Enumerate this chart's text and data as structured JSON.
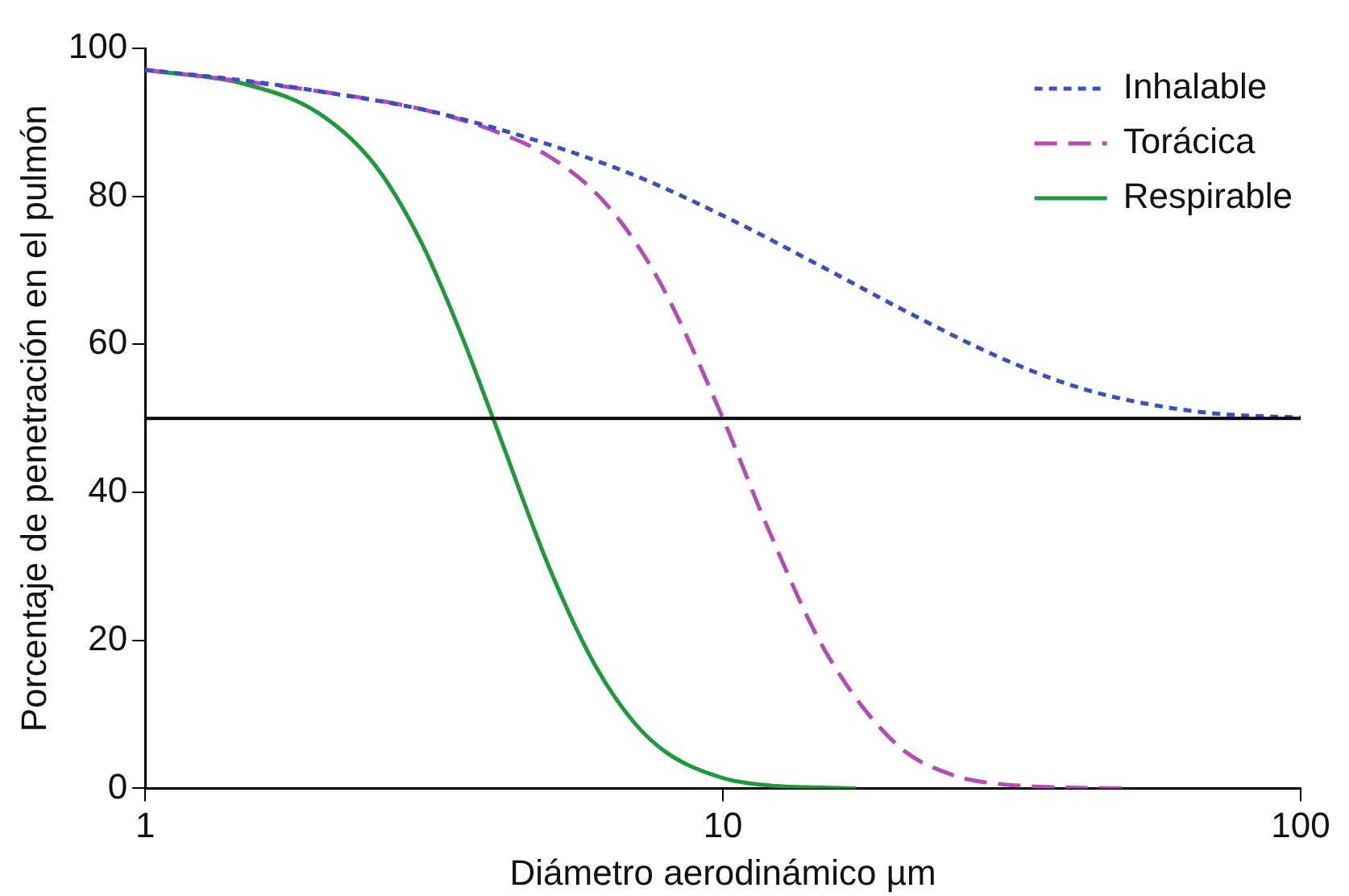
{
  "chart_data": {
    "type": "line",
    "xlabel": "Diámetro aerodinámico µm",
    "ylabel": "Porcentaje de penetración en el pulmón",
    "log": "x",
    "xlim": [
      1,
      100
    ],
    "xticks": [
      1,
      10,
      100
    ],
    "ylim": [
      0,
      100
    ],
    "yticks": [
      0,
      20,
      40,
      60,
      80,
      100
    ],
    "grid": false,
    "legend": "top right",
    "marker": "none",
    "ref_lines": [
      {
        "axis": "y",
        "value": 50,
        "color": "#000000"
      }
    ],
    "series": [
      {
        "name": "Inhalable",
        "color": "#3c4fc0",
        "line_style": "dotted",
        "x": [
          1,
          1.5,
          2,
          3,
          4,
          5,
          7,
          10,
          15,
          20,
          30,
          40,
          50,
          70,
          100
        ],
        "values": [
          97.1,
          95.6,
          94.2,
          91.8,
          89.3,
          87.0,
          82.9,
          77.4,
          70.3,
          65.1,
          58.3,
          54.5,
          52.5,
          50.7,
          50.1
        ]
      },
      {
        "name": "Torácica",
        "color": "#b44cb4",
        "line_style": "dashed",
        "x": [
          1,
          2,
          3,
          4,
          5,
          6,
          7,
          8,
          10,
          12,
          15,
          20,
          25,
          30,
          40,
          50
        ],
        "values": [
          97.1,
          94.2,
          91.8,
          88.9,
          85.4,
          80.6,
          74.2,
          66.6,
          50.0,
          34.9,
          18.7,
          5.9,
          1.8,
          0.6,
          0.1,
          0
        ]
      },
      {
        "name": "Respirable",
        "color": "#1e9a3c",
        "line_style": "solid",
        "x": [
          1,
          1.5,
          2,
          2.5,
          3,
          3.5,
          4,
          5,
          6,
          7,
          8,
          10,
          12,
          15,
          17
        ],
        "values": [
          97.1,
          95.1,
          91.2,
          84.2,
          73.9,
          61.9,
          50.0,
          29.9,
          16.7,
          9.0,
          4.8,
          1.4,
          0.4,
          0.1,
          0
        ]
      }
    ]
  }
}
